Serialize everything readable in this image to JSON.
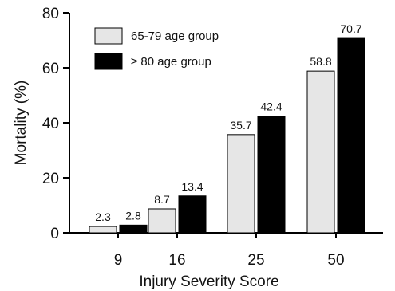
{
  "chart_data": {
    "type": "bar",
    "xlabel": "Injury Severity Score",
    "ylabel": "Mortality (%)",
    "categories": [
      "9",
      "16",
      "25",
      "50"
    ],
    "ylim": [
      0,
      80
    ],
    "yticks": [
      "0",
      "20",
      "40",
      "60",
      "80"
    ],
    "legend_position": "top-left",
    "grid": false,
    "series": [
      {
        "name": "65-79 age group",
        "values": [
          2.3,
          8.7,
          35.7,
          58.8
        ],
        "labels": [
          "2.3",
          "8.7",
          "35.7",
          "58.8"
        ],
        "color": "#e6e6e6"
      },
      {
        "name": "≥ 80 age group",
        "values": [
          2.8,
          13.4,
          42.4,
          70.7
        ],
        "labels": [
          "2.8",
          "13.4",
          "42.4",
          "70.7"
        ],
        "color": "#000000"
      }
    ]
  }
}
